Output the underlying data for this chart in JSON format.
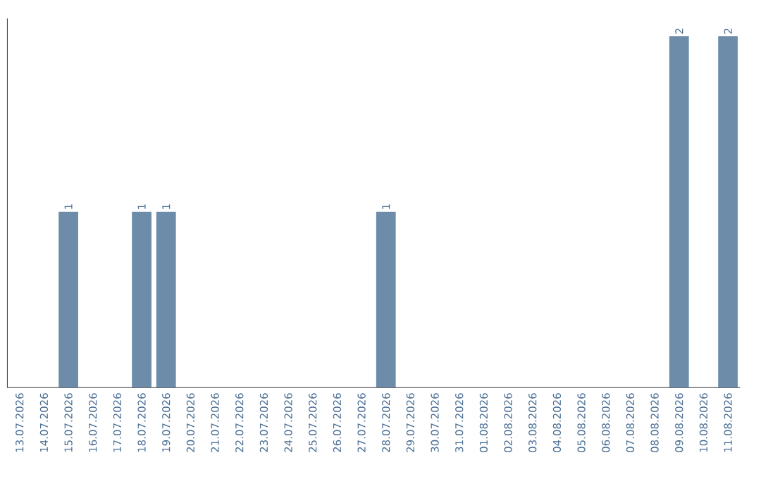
{
  "chart_data": {
    "type": "bar",
    "categories": [
      "13.07.2026",
      "14.07.2026",
      "15.07.2026",
      "16.07.2026",
      "17.07.2026",
      "18.07.2026",
      "19.07.2026",
      "20.07.2026",
      "21.07.2026",
      "22.07.2026",
      "23.07.2026",
      "24.07.2026",
      "25.07.2026",
      "26.07.2026",
      "27.07.2026",
      "28.07.2026",
      "29.07.2026",
      "30.07.2026",
      "31.07.2026",
      "01.08.2026",
      "02.08.2026",
      "03.08.2026",
      "04.08.2026",
      "05.08.2026",
      "06.08.2026",
      "07.08.2026",
      "08.08.2026",
      "09.08.2026",
      "10.08.2026",
      "11.08.2026"
    ],
    "values": [
      0,
      0,
      1,
      0,
      0,
      1,
      1,
      0,
      0,
      0,
      0,
      0,
      0,
      0,
      0,
      1,
      0,
      0,
      0,
      0,
      0,
      0,
      0,
      0,
      0,
      0,
      0,
      2,
      0,
      2
    ],
    "value_labels": [
      null,
      null,
      "1",
      null,
      null,
      "1",
      "1",
      null,
      null,
      null,
      null,
      null,
      null,
      null,
      null,
      "1",
      null,
      null,
      null,
      null,
      null,
      null,
      null,
      null,
      null,
      null,
      null,
      "2",
      null,
      "2"
    ],
    "color": "#6d8caa",
    "grid": false
  }
}
